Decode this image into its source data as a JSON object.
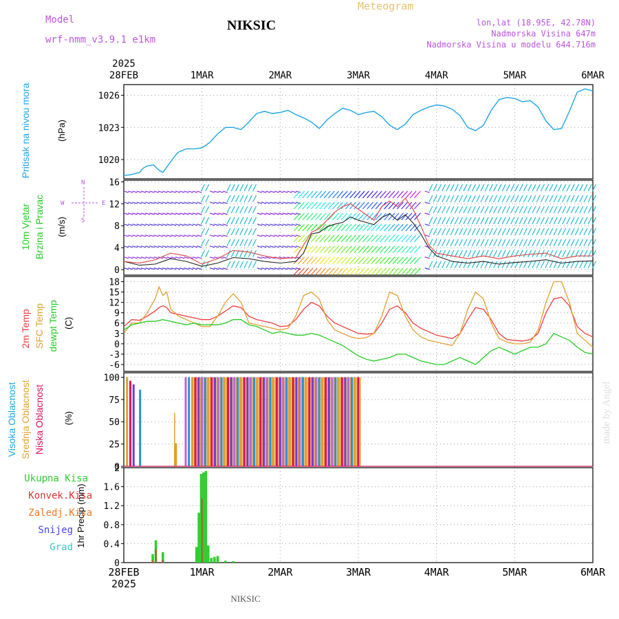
{
  "header": {
    "model_label": "Model",
    "model_name": "wrf-nmm_v3.9.1 e1km",
    "station": "NIKSIC",
    "product": "Meteogram",
    "coords": "lon,lat (18.95E, 42.78N)",
    "elevation": "Nadmorska Visina 647m",
    "model_elevation": "Nadmorska Visina u modelu 644.716m"
  },
  "footer": {
    "station": "NIKSIC",
    "credit": "made by Angel"
  },
  "colors": {
    "pressure": "#1ea5e6",
    "temp2m": "#ef3b3b",
    "sfc": "#e0a030",
    "dew": "#22cc22",
    "purple": "#bb55dd",
    "violet": "#8a2be2",
    "cloud_high": "#2a90d8",
    "cloud_mid": "#e0a030",
    "cloud_low": "#e0105a",
    "cloud_extra": "#6a3bd8",
    "rain_total": "#33cc33",
    "rain_conv": "#e03030"
  },
  "time_axis": {
    "ticks": [
      "28FEB",
      "1MAR",
      "2MAR",
      "3MAR",
      "4MAR",
      "5MAR",
      "6MAR"
    ],
    "year": "2025"
  },
  "panels": {
    "pressure": {
      "title": "Pritisak na nivou mora",
      "unit": "(hPa)"
    },
    "wind": {
      "title": "10m Vjetar",
      "title2": "Brzina i Pravac",
      "unit": "(m/s)",
      "compass_w": "W",
      "compass_n": "N",
      "compass_e": "E",
      "compass_s": "S"
    },
    "temp": {
      "t2m": "2m Temp",
      "sfc": "SFC Temp",
      "dew": "dewpt Temp",
      "unit": "(C)"
    },
    "cloud": {
      "high": "Visoka Oblacnost",
      "mid": "Srednja Oblacnost",
      "low": "Niska Oblacnost",
      "unit": "(%)"
    },
    "precip": {
      "total": "Ukupna Kisa",
      "conv": "Konvek.Kisa",
      "frz": "Zaledj.Kisa",
      "snow": "Snijeg",
      "hail": "Grad",
      "unit": "1hr Precip (mm)"
    }
  },
  "chart_data": [
    {
      "type": "line",
      "name": "pressure",
      "x_unit": "days since 28FEB 00UTC",
      "ylim": [
        1018.2,
        1027
      ],
      "yticks": [
        1020,
        1023,
        1026
      ],
      "series": [
        {
          "name": "Pritisak na nivou mora",
          "x": [
            0,
            0.1,
            0.2,
            0.25,
            0.3,
            0.38,
            0.45,
            0.5,
            0.55,
            0.6,
            0.65,
            0.7,
            0.8,
            0.9,
            1.0,
            1.1,
            1.2,
            1.3,
            1.4,
            1.5,
            1.6,
            1.7,
            1.8,
            1.9,
            2.0,
            2.1,
            2.2,
            2.3,
            2.4,
            2.5,
            2.6,
            2.7,
            2.8,
            2.9,
            3.0,
            3.1,
            3.2,
            3.3,
            3.4,
            3.5,
            3.6,
            3.7,
            3.8,
            3.9,
            4.0,
            4.1,
            4.2,
            4.3,
            4.4,
            4.5,
            4.6,
            4.7,
            4.8,
            4.9,
            5.0,
            5.1,
            5.2,
            5.3,
            5.4,
            5.5,
            5.6,
            5.7,
            5.8,
            5.9,
            6.0
          ],
          "values": [
            1018.5,
            1018.6,
            1018.8,
            1019.2,
            1019.4,
            1019.5,
            1019.0,
            1018.8,
            1019.3,
            1019.8,
            1020.3,
            1020.7,
            1021.0,
            1021.0,
            1021.1,
            1021.6,
            1022.4,
            1023.0,
            1023.0,
            1022.8,
            1023.5,
            1024.3,
            1024.5,
            1024.3,
            1024.4,
            1024.6,
            1024.2,
            1023.9,
            1023.5,
            1022.9,
            1023.7,
            1024.3,
            1024.8,
            1024.6,
            1024.2,
            1024.4,
            1024.5,
            1024.0,
            1023.2,
            1022.8,
            1023.3,
            1024.2,
            1024.6,
            1024.9,
            1025.1,
            1025.0,
            1024.7,
            1024.1,
            1023.0,
            1022.7,
            1023.2,
            1024.6,
            1025.6,
            1025.8,
            1025.7,
            1025.4,
            1025.5,
            1024.9,
            1023.6,
            1022.8,
            1022.9,
            1024.5,
            1026.3,
            1026.6,
            1026.4
          ]
        }
      ]
    },
    {
      "type": "line",
      "name": "wind",
      "x_unit": "days since 28FEB 00UTC",
      "ylim": [
        -1,
        16.3
      ],
      "yticks": [
        0,
        4,
        8,
        12,
        16
      ],
      "series": [
        {
          "name": "speed",
          "x": [
            0,
            0.2,
            0.4,
            0.6,
            0.8,
            1.0,
            1.2,
            1.4,
            1.6,
            1.8,
            2.0,
            2.2,
            2.3,
            2.4,
            2.5,
            2.6,
            2.7,
            2.8,
            2.9,
            3.0,
            3.1,
            3.2,
            3.3,
            3.4,
            3.5,
            3.6,
            3.7,
            3.8,
            3.9,
            4.0,
            4.2,
            4.4,
            4.6,
            4.8,
            5.0,
            5.2,
            5.4,
            5.6,
            5.8,
            6.0
          ],
          "values": [
            1.5,
            0.8,
            1.0,
            2.0,
            1.5,
            0.6,
            1.2,
            2.2,
            2.0,
            1.5,
            1.2,
            1.5,
            3.0,
            6.5,
            6.8,
            7.8,
            8.3,
            8.6,
            9.6,
            9.0,
            8.6,
            8.2,
            9.5,
            10.2,
            9.0,
            10.0,
            8.5,
            6.5,
            4.0,
            2.5,
            1.5,
            1.2,
            1.5,
            1.0,
            1.3,
            1.5,
            1.8,
            1.2,
            1.5,
            1.6
          ]
        },
        {
          "name": "gust",
          "x": [
            0,
            0.2,
            0.4,
            0.6,
            0.8,
            1.0,
            1.2,
            1.4,
            1.6,
            1.8,
            2.0,
            2.2,
            2.3,
            2.4,
            2.5,
            2.6,
            2.7,
            2.8,
            2.9,
            3.0,
            3.1,
            3.2,
            3.3,
            3.4,
            3.5,
            3.6,
            3.7,
            3.8,
            3.9,
            4.0,
            4.2,
            4.4,
            4.6,
            4.8,
            5.0,
            5.2,
            5.4,
            5.6,
            5.8,
            6.0
          ],
          "values": [
            1.5,
            1.2,
            1.8,
            3.0,
            2.5,
            1.0,
            2.0,
            3.5,
            3.2,
            2.5,
            2.0,
            2.2,
            4.5,
            6.8,
            7.5,
            9.0,
            10.5,
            11.5,
            12.0,
            11.0,
            10.0,
            9.0,
            11.5,
            12.5,
            11.5,
            13.0,
            11.0,
            8.0,
            4.5,
            3.0,
            2.5,
            2.0,
            2.5,
            2.0,
            2.5,
            2.8,
            3.0,
            2.0,
            2.5,
            2.5
          ]
        }
      ]
    },
    {
      "type": "line",
      "name": "temperature",
      "x_unit": "days since 28FEB 00UTC",
      "ylim": [
        -8,
        19.5
      ],
      "yticks": [
        -6,
        -3,
        0,
        3,
        6,
        9,
        12,
        15,
        18
      ],
      "series": [
        {
          "name": "2m Temp",
          "x": [
            0,
            0.1,
            0.2,
            0.3,
            0.4,
            0.45,
            0.5,
            0.55,
            0.6,
            0.7,
            0.8,
            0.9,
            1.0,
            1.1,
            1.2,
            1.3,
            1.4,
            1.5,
            1.6,
            1.7,
            1.8,
            1.9,
            2.0,
            2.1,
            2.2,
            2.3,
            2.4,
            2.5,
            2.6,
            2.7,
            2.8,
            2.9,
            3.0,
            3.1,
            3.2,
            3.3,
            3.4,
            3.5,
            3.6,
            3.7,
            3.8,
            3.9,
            4.0,
            4.1,
            4.2,
            4.3,
            4.4,
            4.5,
            4.6,
            4.7,
            4.8,
            4.9,
            5.0,
            5.1,
            5.2,
            5.3,
            5.4,
            5.5,
            5.6,
            5.7,
            5.8,
            5.9,
            6.0
          ],
          "values": [
            5,
            7,
            6.8,
            8,
            9.5,
            10.5,
            11,
            10.5,
            9,
            8.5,
            8,
            7.5,
            7,
            7,
            8,
            9.5,
            11,
            10.5,
            8,
            7,
            6.5,
            6,
            5,
            5.2,
            7,
            10,
            12,
            11,
            8,
            6,
            5,
            4,
            3,
            2.8,
            3,
            6,
            10,
            11,
            9,
            6,
            4.5,
            3.5,
            2.5,
            2,
            1.5,
            3,
            7,
            10.5,
            10,
            7,
            3,
            1.2,
            1.0,
            0.8,
            1.2,
            3,
            9,
            13,
            13.5,
            11,
            5,
            3,
            2
          ]
        },
        {
          "name": "SFC Temp",
          "x": [
            0,
            0.1,
            0.2,
            0.3,
            0.4,
            0.45,
            0.5,
            0.55,
            0.6,
            0.7,
            0.8,
            0.9,
            1.0,
            1.1,
            1.2,
            1.3,
            1.4,
            1.5,
            1.6,
            1.7,
            1.8,
            1.9,
            2.0,
            2.1,
            2.2,
            2.3,
            2.4,
            2.5,
            2.6,
            2.7,
            2.8,
            2.9,
            3.0,
            3.1,
            3.2,
            3.3,
            3.4,
            3.5,
            3.6,
            3.7,
            3.8,
            3.9,
            4.0,
            4.1,
            4.2,
            4.3,
            4.4,
            4.5,
            4.6,
            4.7,
            4.8,
            4.9,
            5.0,
            5.1,
            5.2,
            5.3,
            5.4,
            5.5,
            5.6,
            5.7,
            5.8,
            5.9,
            6.0
          ],
          "values": [
            3,
            6,
            6,
            9,
            13,
            16.5,
            14,
            15,
            10,
            8,
            7,
            6,
            5,
            5,
            8,
            12,
            14.5,
            12,
            6,
            5.5,
            5,
            4.5,
            4,
            4.5,
            8,
            14,
            15,
            13,
            7,
            4,
            3,
            2,
            1.5,
            1.8,
            3,
            8,
            15,
            14,
            8,
            4,
            2,
            1,
            0.5,
            0,
            -0.5,
            3,
            10,
            15,
            13,
            6,
            1.5,
            0.5,
            0,
            0,
            0.5,
            4,
            12,
            18,
            18,
            12,
            3,
            1,
            -1
          ]
        },
        {
          "name": "dewpt Temp",
          "x": [
            0,
            0.1,
            0.2,
            0.3,
            0.4,
            0.5,
            0.6,
            0.7,
            0.8,
            0.9,
            1.0,
            1.1,
            1.2,
            1.3,
            1.4,
            1.5,
            1.6,
            1.7,
            1.8,
            1.9,
            2.0,
            2.1,
            2.2,
            2.3,
            2.4,
            2.5,
            2.6,
            2.7,
            2.8,
            2.9,
            3.0,
            3.1,
            3.2,
            3.3,
            3.4,
            3.5,
            3.6,
            3.7,
            3.8,
            3.9,
            4.0,
            4.1,
            4.2,
            4.3,
            4.4,
            4.5,
            4.6,
            4.7,
            4.8,
            4.9,
            5.0,
            5.1,
            5.2,
            5.3,
            5.4,
            5.5,
            5.6,
            5.7,
            5.8,
            5.9,
            6.0
          ],
          "values": [
            4,
            5.5,
            6,
            6.5,
            6.5,
            7,
            6.5,
            6,
            5.5,
            6,
            5.5,
            5.5,
            5.5,
            6,
            7,
            7,
            5.5,
            5,
            4,
            3,
            3.5,
            3,
            2.5,
            2.5,
            3,
            2.5,
            1.5,
            0.5,
            -0.5,
            -2,
            -3.5,
            -4.5,
            -5,
            -4.5,
            -4,
            -3,
            -3,
            -4,
            -5,
            -5.5,
            -6,
            -6,
            -5,
            -4,
            -5,
            -6,
            -4,
            -2,
            -1,
            -2,
            -3,
            -2,
            -1,
            -1,
            0,
            3,
            2,
            1,
            -1,
            -2.5,
            -3
          ]
        }
      ]
    },
    {
      "type": "bar",
      "name": "cloud",
      "x_unit": "days since 28FEB 00UTC",
      "ylim": [
        0,
        105
      ],
      "yticks": [
        0,
        25,
        50,
        75,
        100
      ],
      "step": 0.041667,
      "series": [
        {
          "name": "Visoka Oblacnost",
          "values": [
            0,
            100,
            96,
            92,
            0,
            86,
            0,
            0,
            0,
            0,
            0,
            0,
            0,
            0,
            0,
            0,
            26,
            0,
            0,
            100,
            100,
            100,
            100,
            100,
            100,
            100,
            100,
            100,
            100,
            100,
            100,
            100,
            100,
            100,
            100,
            100,
            100,
            100,
            100,
            100,
            100,
            100,
            100,
            100,
            100,
            100,
            100,
            100,
            100,
            100,
            100,
            100,
            100,
            100,
            100,
            100,
            100,
            100,
            100,
            100,
            100,
            100,
            100,
            100,
            100,
            100,
            100,
            100,
            100,
            100,
            100,
            100,
            100
          ]
        },
        {
          "name": "Srednja Oblacnost",
          "values": [
            0,
            0,
            0,
            0,
            0,
            0,
            0,
            0,
            0,
            0,
            0,
            0,
            0,
            0,
            0,
            60,
            0,
            0,
            0,
            0,
            0,
            100,
            100,
            100,
            100,
            100,
            100,
            100,
            100,
            100,
            100,
            100,
            100,
            100,
            100,
            100,
            100,
            100,
            100,
            100,
            100,
            100,
            100,
            100,
            100,
            100,
            100,
            100,
            100,
            100,
            100,
            100,
            100,
            100,
            100,
            100,
            100,
            100,
            100,
            100,
            100,
            100,
            100,
            100,
            100,
            100,
            100,
            100,
            100,
            100,
            100,
            100,
            100
          ]
        },
        {
          "name": "Niska Oblacnost",
          "values": [
            0,
            0,
            0,
            0,
            0,
            0,
            0,
            0,
            0,
            0,
            0,
            0,
            0,
            0,
            0,
            0,
            0,
            0,
            0,
            0,
            0,
            0,
            0,
            0,
            0,
            0,
            0,
            0,
            0,
            0,
            0,
            0,
            0,
            0,
            0,
            0,
            0,
            0,
            0,
            0,
            0,
            0,
            0,
            0,
            0,
            0,
            0,
            0,
            0,
            0,
            0,
            0,
            0,
            0,
            0,
            0,
            0,
            0,
            0,
            0,
            0,
            0,
            0,
            0,
            0,
            0,
            0,
            0,
            0,
            0,
            0,
            0,
            0
          ]
        }
      ]
    },
    {
      "type": "bar",
      "name": "precip",
      "x_unit": "days since 28FEB 00UTC",
      "ylim": [
        0,
        2
      ],
      "yticks": [
        0,
        0.4,
        0.8,
        1.2,
        1.6,
        2
      ],
      "series": [
        {
          "name": "Ukupna Kisa",
          "x": [
            0.37,
            0.41,
            0.5,
            0.93,
            0.96,
            0.99,
            1.02,
            1.05,
            1.08,
            1.12,
            1.16,
            1.2,
            1.3,
            1.4
          ],
          "values": [
            0.18,
            0.47,
            0.22,
            0.33,
            1.05,
            1.87,
            1.9,
            1.93,
            0.36,
            0.1,
            0.12,
            0.14,
            0.04,
            0.03
          ]
        },
        {
          "name": "Konvek.Kisa",
          "x": [
            0.37,
            0.41,
            0.5,
            1.0
          ],
          "values": [
            0.05,
            0.28,
            0.06,
            1.35
          ]
        }
      ]
    }
  ]
}
